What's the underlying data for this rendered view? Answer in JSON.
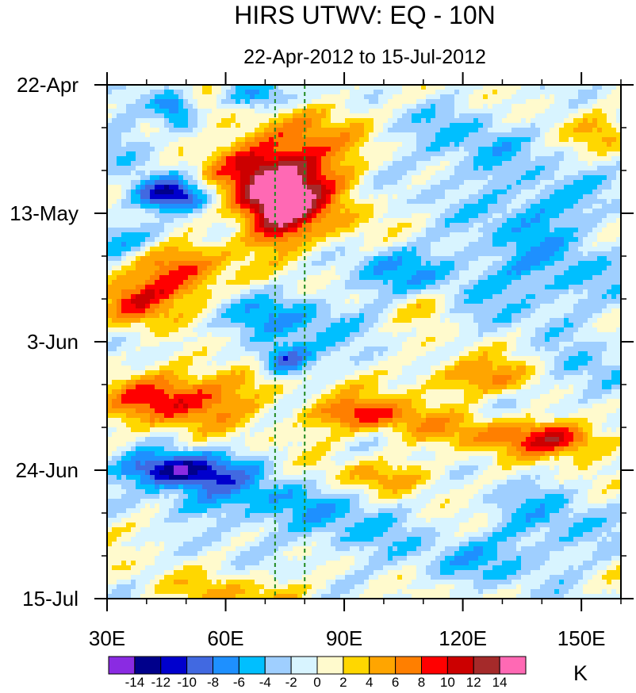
{
  "chart_data": {
    "type": "heatmap",
    "title": "HIRS UTWV: EQ - 10N",
    "subtitle": "22-Apr-2012 to 15-Jul-2012",
    "x_axis": {
      "range": [
        30,
        160
      ],
      "ticks": [
        {
          "value": 30,
          "label": "30E"
        },
        {
          "value": 60,
          "label": "60E"
        },
        {
          "value": 90,
          "label": "90E"
        },
        {
          "value": 120,
          "label": "120E"
        },
        {
          "value": 150,
          "label": "150E"
        }
      ],
      "minor_step": 10
    },
    "y_axis": {
      "range_days": [
        0,
        84
      ],
      "orientation": "time increases downward",
      "ticks": [
        {
          "day": 0,
          "label": "22-Apr"
        },
        {
          "day": 21,
          "label": "13-May"
        },
        {
          "day": 42,
          "label": "3-Jun"
        },
        {
          "day": 63,
          "label": "24-Jun"
        },
        {
          "day": 84,
          "label": "15-Jul"
        }
      ],
      "minor_step_days": 7
    },
    "reference_lines_lon": [
      72.5,
      80
    ],
    "reference_line_color": "#1f8a1f",
    "colorbar": {
      "unit": "K",
      "levels": [
        -14,
        -12,
        -10,
        -8,
        -6,
        -4,
        -2,
        0,
        2,
        4,
        6,
        8,
        10,
        12,
        14
      ],
      "level_labels": [
        "-14",
        "-12",
        "-10",
        "-8",
        "-6",
        "-4",
        "-2",
        "0",
        "2",
        "4",
        "6",
        "8",
        "10",
        "12",
        "14"
      ],
      "colors": [
        "#8a2be2",
        "#00008b",
        "#0000cd",
        "#4169e1",
        "#1e90ff",
        "#00bfff",
        "#9fcfff",
        "#d8f4ff",
        "#fffacd",
        "#ffd700",
        "#ffa500",
        "#ff7f00",
        "#ff0000",
        "#cc0000",
        "#a52a2a",
        "#ff69b4"
      ]
    },
    "anomaly_features": [
      {
        "lon": 70,
        "day": 15,
        "value": 11,
        "spread_lon": 9,
        "spread_day": 5
      },
      {
        "lon": 73,
        "day": 21,
        "value": 10,
        "spread_lon": 6,
        "spread_day": 4
      },
      {
        "lon": 80,
        "day": 13,
        "value": 6,
        "spread_lon": 6,
        "spread_day": 8
      },
      {
        "lon": 90,
        "day": 16,
        "value": 3,
        "spread_lon": 5,
        "spread_day": 8
      },
      {
        "lon": 57,
        "day": 4,
        "value": 4,
        "spread_lon": 5,
        "spread_day": 2
      },
      {
        "lon": 48,
        "day": 31,
        "value": 10,
        "spread_lon": 7,
        "spread_day": 4
      },
      {
        "lon": 38,
        "day": 36,
        "value": 7,
        "spread_lon": 6,
        "spread_day": 3
      },
      {
        "lon": 45,
        "day": 52,
        "value": 8,
        "spread_lon": 12,
        "spread_day": 3
      },
      {
        "lon": 60,
        "day": 49,
        "value": 4,
        "spread_lon": 10,
        "spread_day": 3
      },
      {
        "lon": 95,
        "day": 54,
        "value": 9,
        "spread_lon": 10,
        "spread_day": 2
      },
      {
        "lon": 125,
        "day": 48,
        "value": 6,
        "spread_lon": 12,
        "spread_day": 2
      },
      {
        "lon": 145,
        "day": 58,
        "value": 10,
        "spread_lon": 8,
        "spread_day": 2
      },
      {
        "lon": 125,
        "day": 57,
        "value": 5,
        "spread_lon": 12,
        "spread_day": 2
      },
      {
        "lon": 100,
        "day": 64,
        "value": 4,
        "spread_lon": 12,
        "spread_day": 2
      },
      {
        "lon": 110,
        "day": 36,
        "value": 4,
        "spread_lon": 6,
        "spread_day": 2
      },
      {
        "lon": 155,
        "day": 8,
        "value": 4,
        "spread_lon": 4,
        "spread_day": 2
      },
      {
        "lon": 65,
        "day": 83,
        "value": 4,
        "spread_lon": 12,
        "spread_day": 2
      },
      {
        "lon": 45,
        "day": 72,
        "value": 3,
        "spread_lon": 10,
        "spread_day": 2
      },
      {
        "lon": 47,
        "day": 18,
        "value": -12,
        "spread_lon": 6,
        "spread_day": 2
      },
      {
        "lon": 47,
        "day": 63,
        "value": -12,
        "spread_lon": 10,
        "spread_day": 2
      },
      {
        "lon": 75,
        "day": 45,
        "value": -11,
        "spread_lon": 5,
        "spread_day": 2
      },
      {
        "lon": 70,
        "day": 2,
        "value": -8,
        "spread_lon": 8,
        "spread_day": 2
      },
      {
        "lon": 47,
        "day": 4,
        "value": -8,
        "spread_lon": 4,
        "spread_day": 2
      },
      {
        "lon": 60,
        "day": 68,
        "value": -6,
        "spread_lon": 15,
        "spread_day": 4
      },
      {
        "lon": 75,
        "day": 38,
        "value": -5,
        "spread_lon": 18,
        "spread_day": 3
      },
      {
        "lon": 40,
        "day": 25,
        "value": -6,
        "spread_lon": 10,
        "spread_day": 2
      },
      {
        "lon": 105,
        "day": 30,
        "value": -5,
        "spread_lon": 12,
        "spread_day": 3
      },
      {
        "lon": 140,
        "day": 32,
        "value": -5,
        "spread_lon": 15,
        "spread_day": 5
      },
      {
        "lon": 140,
        "day": 20,
        "value": -5,
        "spread_lon": 12,
        "spread_day": 4
      },
      {
        "lon": 120,
        "day": 10,
        "value": -4,
        "spread_lon": 12,
        "spread_day": 5
      },
      {
        "lon": 150,
        "day": 48,
        "value": -5,
        "spread_lon": 8,
        "spread_day": 3
      },
      {
        "lon": 90,
        "day": 72,
        "value": -4,
        "spread_lon": 10,
        "spread_day": 4
      },
      {
        "lon": 140,
        "day": 72,
        "value": -4,
        "spread_lon": 12,
        "spread_day": 5
      },
      {
        "lon": 35,
        "day": 10,
        "value": -5,
        "spread_lon": 5,
        "spread_day": 3
      },
      {
        "lon": 120,
        "day": 78,
        "value": -3,
        "spread_lon": 15,
        "spread_day": 3
      }
    ]
  }
}
